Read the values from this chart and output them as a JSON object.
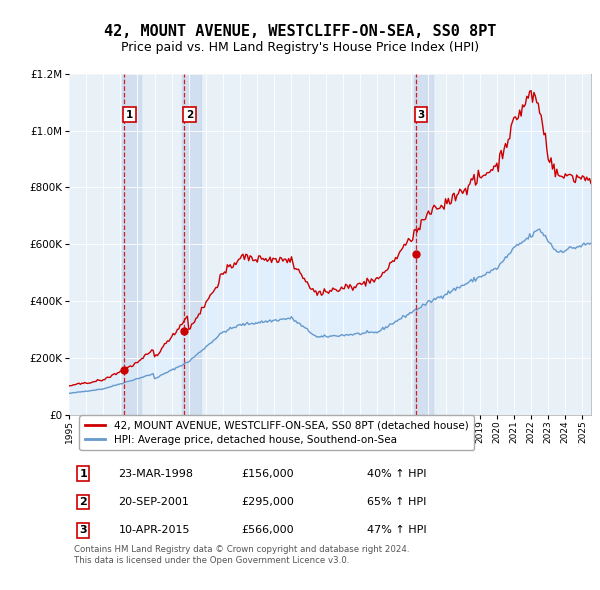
{
  "title": "42, MOUNT AVENUE, WESTCLIFF-ON-SEA, SS0 8PT",
  "subtitle": "Price paid vs. HM Land Registry's House Price Index (HPI)",
  "property_label": "42, MOUNT AVENUE, WESTCLIFF-ON-SEA, SS0 8PT (detached house)",
  "hpi_label": "HPI: Average price, detached house, Southend-on-Sea",
  "footer": "Contains HM Land Registry data © Crown copyright and database right 2024.\nThis data is licensed under the Open Government Licence v3.0.",
  "table_rows": [
    [
      "1",
      "23-MAR-1998",
      "£156,000",
      "40% ↑ HPI"
    ],
    [
      "2",
      "20-SEP-2001",
      "£295,000",
      "65% ↑ HPI"
    ],
    [
      "3",
      "10-APR-2015",
      "£566,000",
      "47% ↑ HPI"
    ]
  ],
  "property_color": "#cc0000",
  "hpi_color": "#6699cc",
  "shade_color": "#ddeeff",
  "background_color": "#ffffff",
  "grid_color": "#cccccc",
  "dashed_line_color": "#cc0000",
  "title_fontsize": 11,
  "subtitle_fontsize": 9,
  "sale_dates": [
    1998.22,
    2001.72,
    2015.27
  ],
  "sale_prices": [
    156000,
    295000,
    566000
  ],
  "sale_labels": [
    "1",
    "2",
    "3"
  ],
  "xlim_start": 1995.0,
  "xlim_end": 2025.5,
  "ylim_min": 0,
  "ylim_max": 1200000,
  "ytick_step": 200000
}
